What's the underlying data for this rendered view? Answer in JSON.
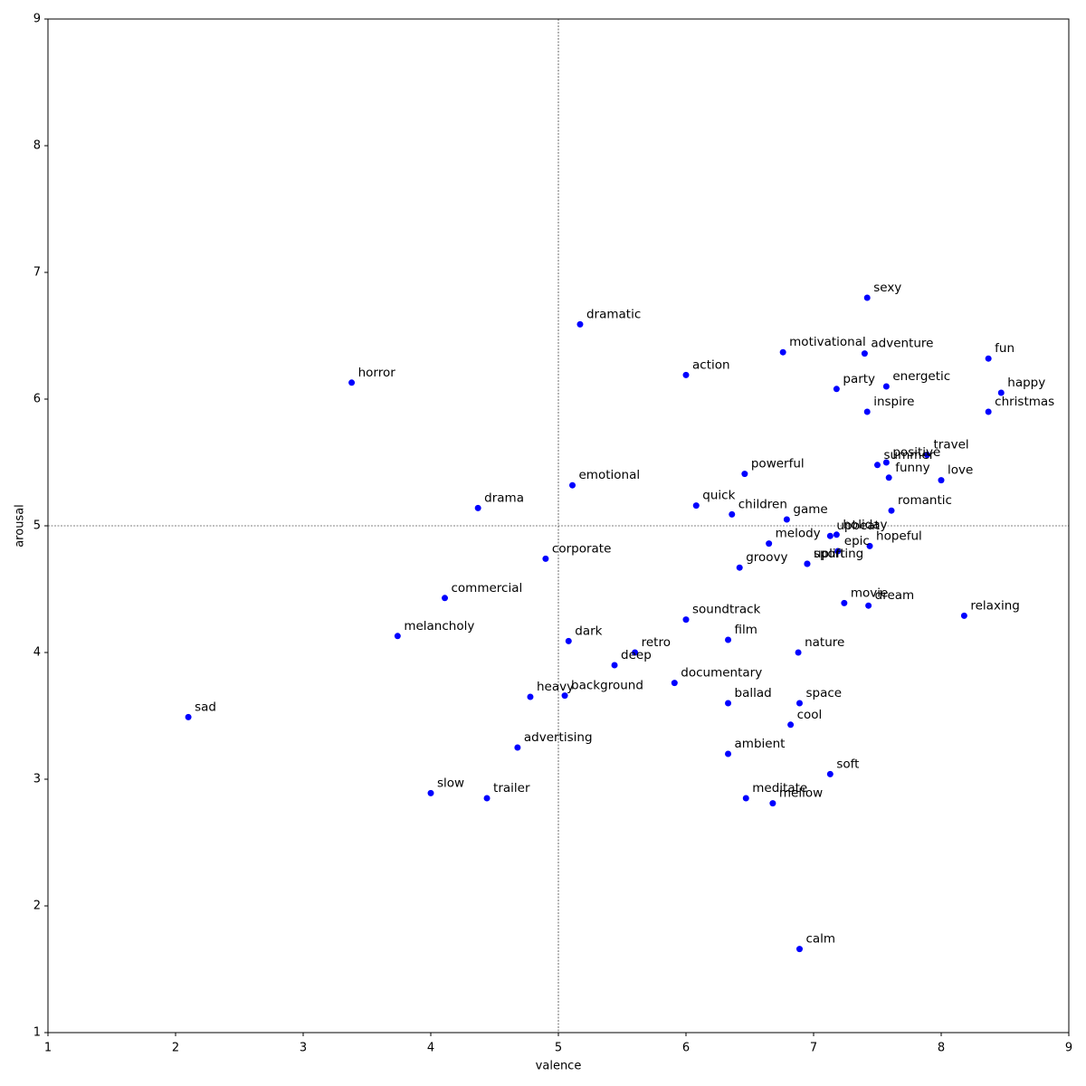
{
  "chart_data": {
    "type": "scatter",
    "x_label": "valence",
    "y_label": "arousal",
    "xlim": [
      1,
      9
    ],
    "ylim": [
      1,
      9
    ],
    "xticks": [
      1,
      2,
      3,
      4,
      5,
      6,
      7,
      8,
      9
    ],
    "yticks": [
      1,
      2,
      3,
      4,
      5,
      6,
      7,
      8,
      9
    ],
    "vlines": [
      5
    ],
    "hlines": [
      5
    ],
    "color": "#0000ff",
    "labels": [
      "sexy",
      "dramatic",
      "motivational",
      "adventure",
      "fun",
      "action",
      "horror",
      "energetic",
      "party",
      "happy",
      "inspire",
      "christmas",
      "travel",
      "positive",
      "summer",
      "powerful",
      "funny",
      "love",
      "emotional",
      "quick",
      "drama",
      "romantic",
      "children",
      "game",
      "holiday",
      "upbeat",
      "melody",
      "hopeful",
      "epic",
      "corporate",
      "sport",
      "uplifting",
      "groovy",
      "commercial",
      "movie",
      "dream",
      "relaxing",
      "soundtrack",
      "melancholy",
      "film",
      "dark",
      "retro",
      "nature",
      "deep",
      "documentary",
      "ballad",
      "space",
      "heavy",
      "background",
      "sad",
      "cool",
      "advertising",
      "ambient",
      "soft",
      "slow",
      "trailer",
      "meditate",
      "mellow",
      "calm"
    ],
    "x": [
      7.42,
      5.17,
      6.76,
      7.4,
      8.37,
      6.0,
      3.38,
      7.57,
      7.18,
      8.47,
      7.42,
      8.37,
      7.89,
      7.57,
      7.5,
      6.46,
      7.59,
      8.0,
      5.11,
      6.08,
      4.37,
      7.61,
      6.36,
      6.79,
      7.18,
      7.13,
      6.65,
      7.44,
      7.19,
      4.9,
      6.95,
      6.95,
      6.42,
      4.11,
      7.24,
      7.43,
      8.18,
      6.0,
      3.74,
      6.33,
      5.08,
      5.6,
      6.88,
      5.44,
      5.91,
      6.33,
      6.89,
      4.78,
      5.05,
      2.1,
      6.82,
      4.68,
      6.33,
      7.13,
      4.0,
      4.44,
      6.47,
      6.68,
      6.89
    ],
    "values": [
      6.8,
      6.59,
      6.37,
      6.36,
      6.32,
      6.19,
      6.13,
      6.1,
      6.08,
      6.05,
      5.9,
      5.9,
      5.56,
      5.5,
      5.48,
      5.41,
      5.38,
      5.36,
      5.32,
      5.16,
      5.14,
      5.12,
      5.09,
      5.05,
      4.93,
      4.92,
      4.86,
      4.84,
      4.8,
      4.74,
      4.7,
      4.7,
      4.67,
      4.43,
      4.39,
      4.37,
      4.29,
      4.26,
      4.13,
      4.1,
      4.09,
      4.0,
      4.0,
      3.9,
      3.76,
      3.6,
      3.6,
      3.65,
      3.66,
      3.49,
      3.43,
      3.25,
      3.2,
      3.04,
      2.89,
      2.85,
      2.85,
      2.81,
      1.66
    ]
  }
}
